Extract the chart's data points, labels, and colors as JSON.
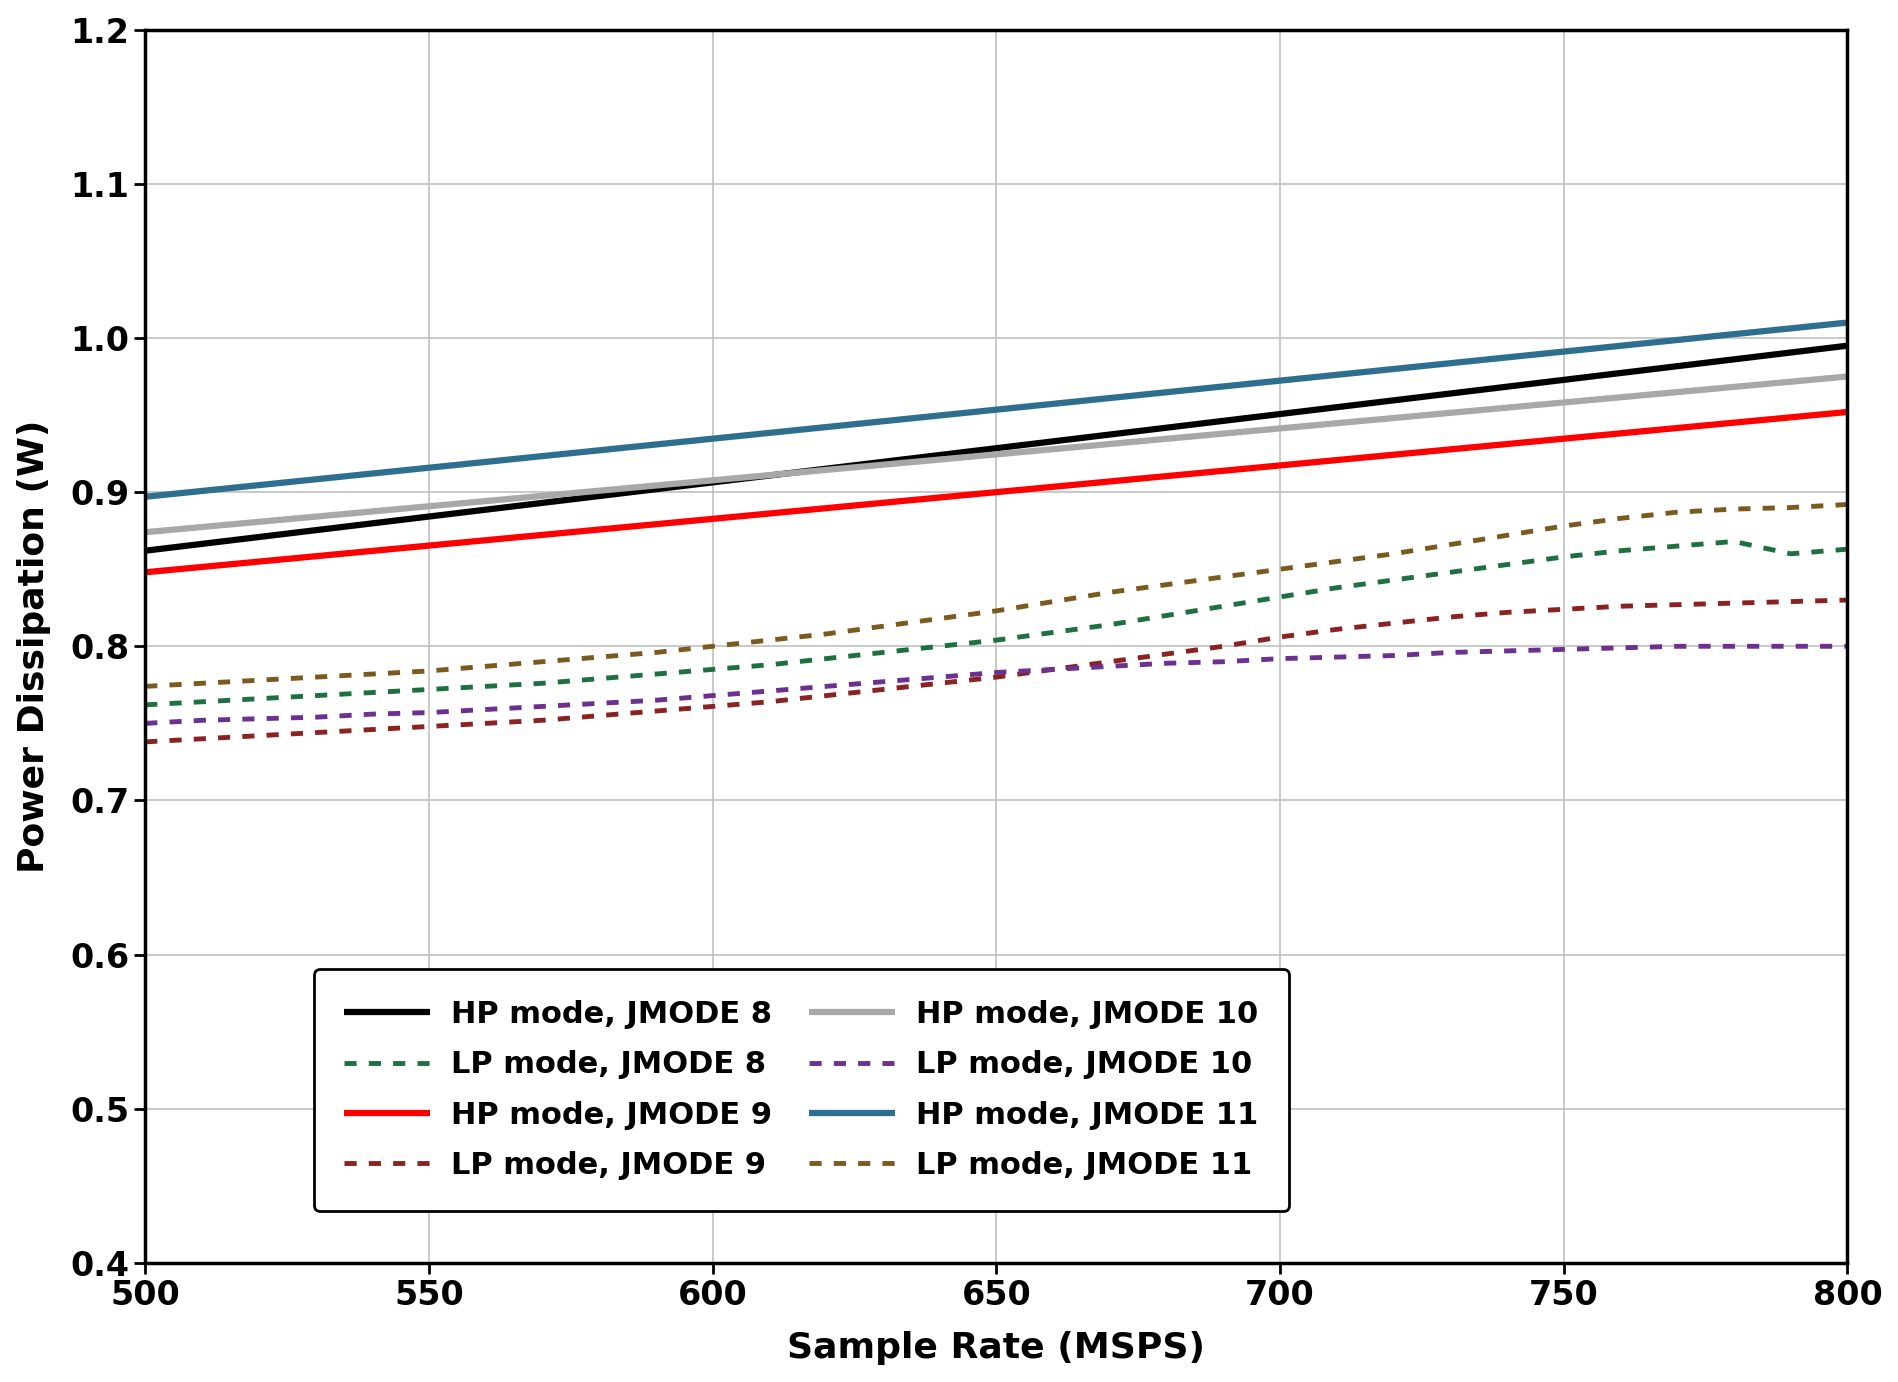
{
  "xlabel": "Sample Rate (MSPS)",
  "ylabel": "Power Dissipation (W)",
  "xlim": [
    500,
    800
  ],
  "ylim": [
    0.4,
    1.2
  ],
  "xticks": [
    500,
    550,
    600,
    650,
    700,
    750,
    800
  ],
  "yticks": [
    0.4,
    0.5,
    0.6,
    0.7,
    0.8,
    0.9,
    1.0,
    1.1,
    1.2
  ],
  "hp_lines": {
    "JMODE 8": {
      "x": [
        500,
        800
      ],
      "y": [
        0.862,
        0.995
      ],
      "color": "#000000",
      "lw": 4.5
    },
    "JMODE 9": {
      "x": [
        500,
        800
      ],
      "y": [
        0.848,
        0.952
      ],
      "color": "#FF0000",
      "lw": 4.5
    },
    "JMODE 10": {
      "x": [
        500,
        800
      ],
      "y": [
        0.874,
        0.975
      ],
      "color": "#A8A8A8",
      "lw": 4.5
    },
    "JMODE 11": {
      "x": [
        500,
        800
      ],
      "y": [
        0.897,
        1.01
      ],
      "color": "#2E6E8E",
      "lw": 4.5
    }
  },
  "lp_lines": {
    "JMODE 8": {
      "x": [
        500,
        510,
        520,
        530,
        540,
        550,
        560,
        570,
        580,
        590,
        600,
        610,
        620,
        630,
        640,
        650,
        660,
        670,
        680,
        690,
        700,
        710,
        720,
        730,
        740,
        750,
        760,
        770,
        780,
        790,
        800
      ],
      "y": [
        0.762,
        0.764,
        0.766,
        0.768,
        0.77,
        0.772,
        0.774,
        0.776,
        0.779,
        0.782,
        0.785,
        0.788,
        0.792,
        0.796,
        0.8,
        0.804,
        0.809,
        0.814,
        0.82,
        0.826,
        0.832,
        0.838,
        0.843,
        0.848,
        0.853,
        0.858,
        0.862,
        0.865,
        0.868,
        0.86,
        0.863
      ],
      "color": "#1E7040",
      "lw": 3.5
    },
    "JMODE 9": {
      "x": [
        500,
        510,
        520,
        530,
        540,
        550,
        560,
        570,
        580,
        590,
        600,
        610,
        620,
        630,
        640,
        650,
        660,
        670,
        680,
        690,
        700,
        710,
        720,
        730,
        740,
        750,
        760,
        770,
        780,
        790,
        800
      ],
      "y": [
        0.738,
        0.74,
        0.742,
        0.744,
        0.746,
        0.748,
        0.75,
        0.752,
        0.755,
        0.758,
        0.761,
        0.764,
        0.768,
        0.772,
        0.776,
        0.78,
        0.785,
        0.79,
        0.795,
        0.8,
        0.806,
        0.811,
        0.815,
        0.819,
        0.822,
        0.824,
        0.826,
        0.827,
        0.828,
        0.829,
        0.83
      ],
      "color": "#8B2222",
      "lw": 3.5
    },
    "JMODE 10": {
      "x": [
        500,
        510,
        520,
        530,
        540,
        550,
        560,
        570,
        580,
        590,
        600,
        610,
        620,
        630,
        640,
        650,
        660,
        670,
        680,
        690,
        700,
        710,
        720,
        730,
        740,
        750,
        760,
        770,
        780,
        790,
        800
      ],
      "y": [
        0.75,
        0.752,
        0.753,
        0.754,
        0.756,
        0.757,
        0.759,
        0.761,
        0.763,
        0.765,
        0.768,
        0.771,
        0.774,
        0.777,
        0.78,
        0.783,
        0.785,
        0.787,
        0.789,
        0.79,
        0.792,
        0.793,
        0.794,
        0.796,
        0.797,
        0.798,
        0.799,
        0.8,
        0.8,
        0.8,
        0.8
      ],
      "color": "#6B3090",
      "lw": 3.5
    },
    "JMODE 11": {
      "x": [
        500,
        510,
        520,
        530,
        540,
        550,
        560,
        570,
        580,
        590,
        600,
        610,
        620,
        630,
        640,
        650,
        660,
        670,
        680,
        690,
        700,
        710,
        720,
        730,
        740,
        750,
        760,
        770,
        780,
        790,
        800
      ],
      "y": [
        0.774,
        0.776,
        0.778,
        0.78,
        0.782,
        0.784,
        0.787,
        0.79,
        0.793,
        0.796,
        0.8,
        0.804,
        0.808,
        0.813,
        0.818,
        0.823,
        0.829,
        0.835,
        0.84,
        0.845,
        0.85,
        0.855,
        0.86,
        0.866,
        0.872,
        0.878,
        0.883,
        0.887,
        0.889,
        0.89,
        0.892
      ],
      "color": "#7B5A1E",
      "lw": 3.5
    }
  },
  "legend_fontsize": 22,
  "axis_fontsize": 26,
  "tick_fontsize": 24,
  "grid_color": "#C0C0C0",
  "background_color": "#FFFFFF"
}
